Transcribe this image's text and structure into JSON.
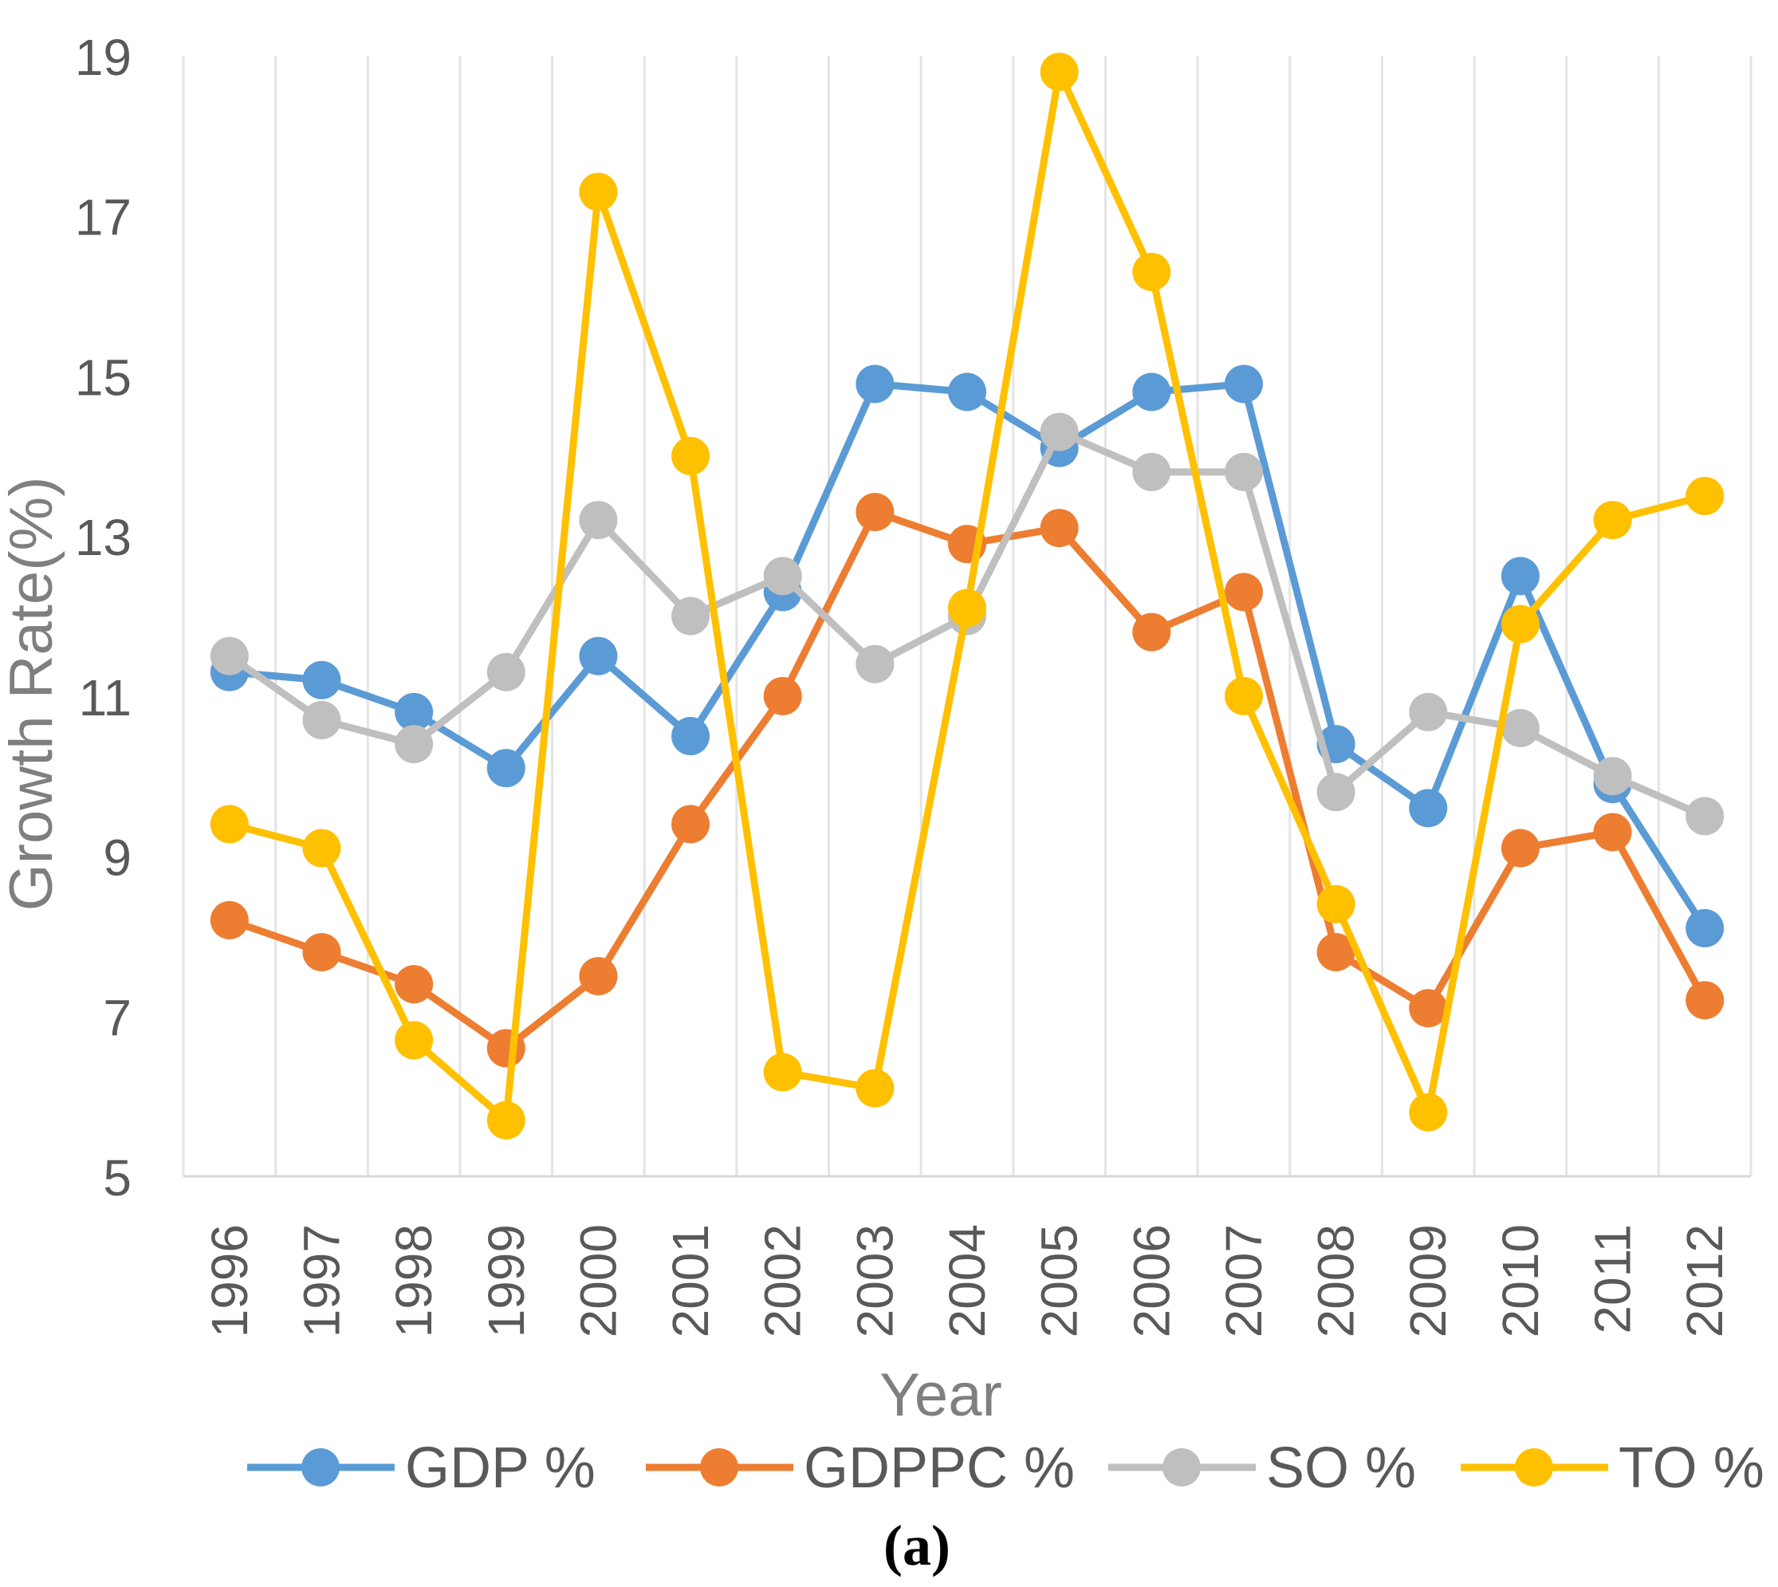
{
  "chart_data": {
    "type": "line",
    "title": "",
    "caption": "(a)",
    "xlabel": "Year",
    "ylabel": "Growth Rate(%)",
    "ylim": [
      5,
      19
    ],
    "yticks": [
      5,
      7,
      9,
      11,
      13,
      15,
      17,
      19
    ],
    "grid": "vertical",
    "legend_position": "bottom",
    "categories": [
      "1996",
      "1997",
      "1998",
      "1999",
      "2000",
      "2001",
      "2002",
      "2003",
      "2004",
      "2005",
      "2006",
      "2007",
      "2008",
      "2009",
      "2010",
      "2011",
      "2012"
    ],
    "series": [
      {
        "name": "GDP %",
        "color": "#5b9bd5",
        "values": [
          11.3,
          11.2,
          10.8,
          10.1,
          11.5,
          10.5,
          12.3,
          14.9,
          14.8,
          14.1,
          14.8,
          14.9,
          10.4,
          9.6,
          12.5,
          9.9,
          8.1
        ]
      },
      {
        "name": "GDPPC %",
        "color": "#ed7d31",
        "values": [
          8.2,
          7.8,
          7.4,
          6.6,
          7.5,
          9.4,
          11.0,
          13.3,
          12.9,
          13.1,
          11.8,
          12.3,
          7.8,
          7.1,
          9.1,
          9.3,
          7.2
        ]
      },
      {
        "name": "SO %",
        "color": "#bfbfbf",
        "values": [
          11.5,
          10.7,
          10.4,
          11.3,
          13.2,
          12.0,
          12.5,
          11.4,
          12.0,
          14.3,
          13.8,
          13.8,
          9.8,
          10.8,
          10.6,
          10.0,
          9.5
        ]
      },
      {
        "name": "TO %",
        "color": "#ffc000",
        "values": [
          9.4,
          9.1,
          6.7,
          5.7,
          17.3,
          14.0,
          6.3,
          6.1,
          12.1,
          18.8,
          16.3,
          11.0,
          8.4,
          5.8,
          11.9,
          13.2,
          13.5
        ]
      }
    ]
  }
}
